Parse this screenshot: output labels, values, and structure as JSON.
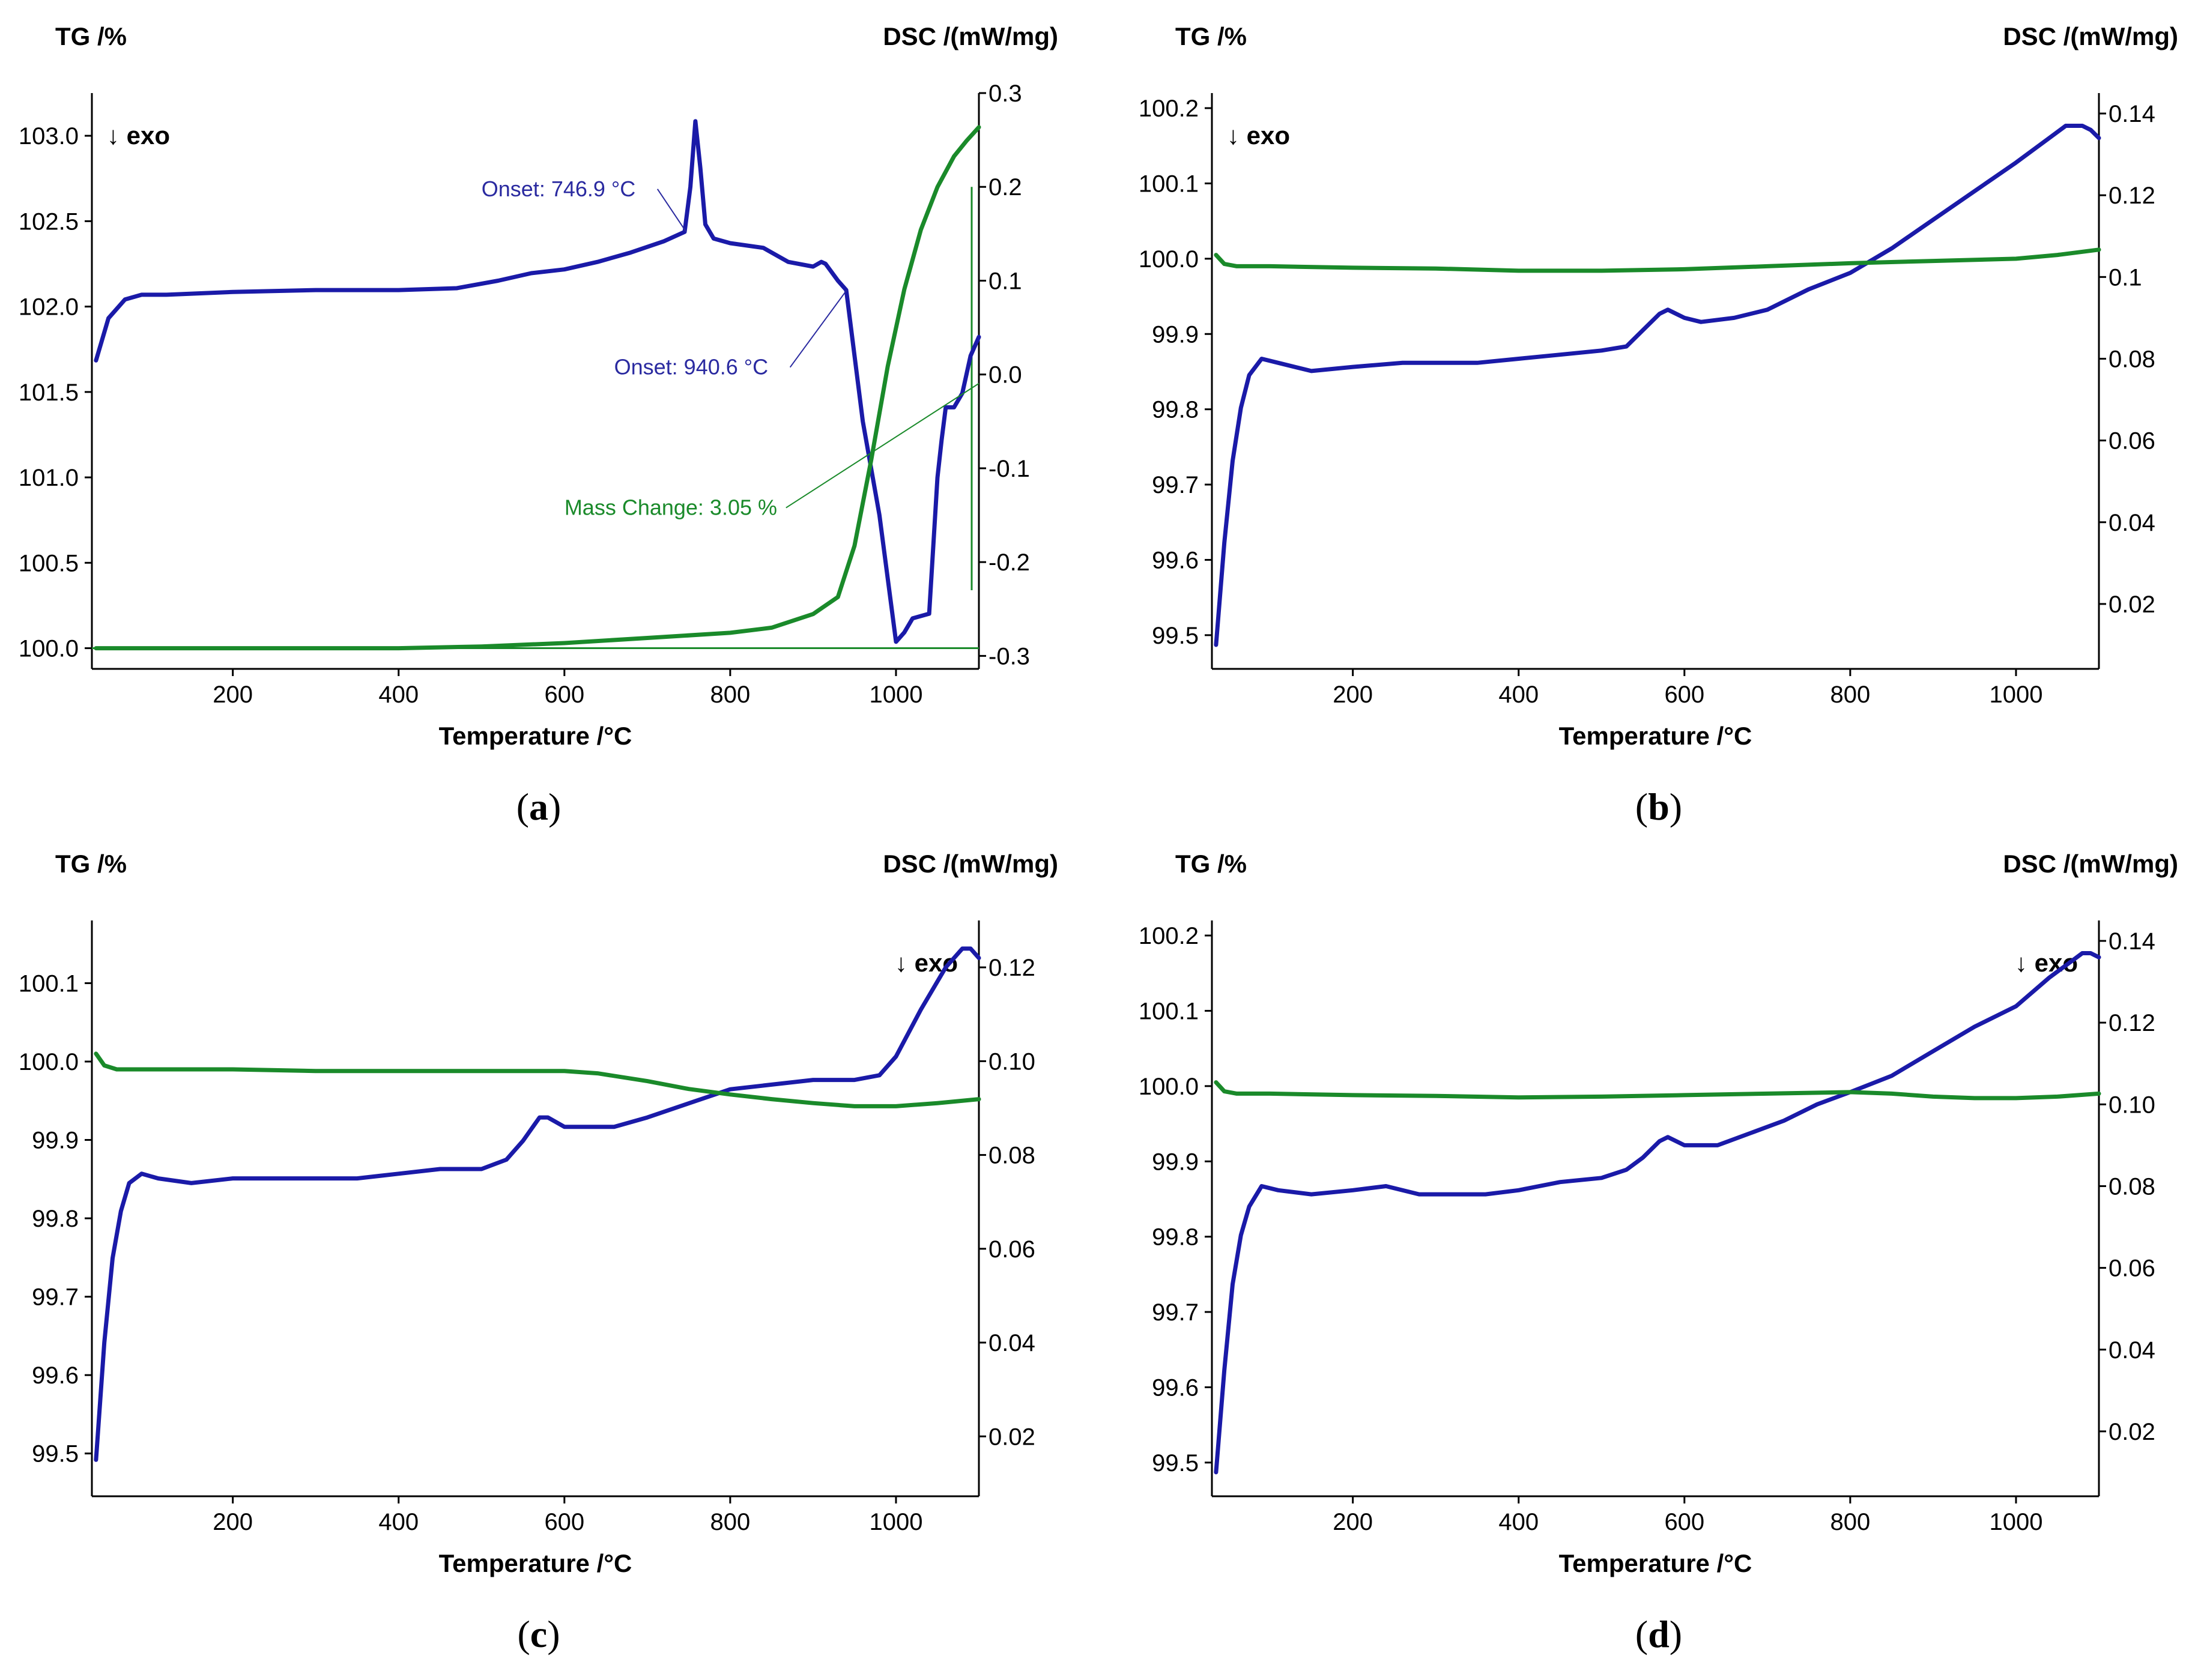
{
  "figure": {
    "colors": {
      "dsc": "#1a1aa8",
      "tg": "#1a8a2a",
      "axis": "#000000",
      "annot_dsc": "#2a2aa0",
      "annot_tg": "#1a8a2a"
    }
  },
  "chart_data": [
    {
      "panel": "(a)",
      "panel_letter": "a",
      "type": "line",
      "y_left_title": "TG /%",
      "y_right_title": "DSC /(mW/mg)",
      "xlabel": "Temperature /°C",
      "exo_label": "↓ exo",
      "exo_pos": "top-left",
      "xlim": [
        30,
        1100
      ],
      "xticks": [
        200,
        400,
        600,
        800,
        1000
      ],
      "ylim_left": [
        99.9,
        103.25
      ],
      "yticks_left": [
        {
          "v": 100.0,
          "t": "100.0"
        },
        {
          "v": 100.5,
          "t": "100.5"
        },
        {
          "v": 101.0,
          "t": "101.0"
        },
        {
          "v": 101.5,
          "t": "101.5"
        },
        {
          "v": 102.0,
          "t": "102.0"
        },
        {
          "v": 102.5,
          "t": "102.5"
        },
        {
          "v": 103.0,
          "t": "103.0"
        }
      ],
      "ylim_right": [
        -0.31,
        0.3
      ],
      "yticks_right": [
        {
          "v": 0.3,
          "t": "0.3"
        },
        {
          "v": 0.2,
          "t": "0.2"
        },
        {
          "v": 0.1,
          "t": "0.1"
        },
        {
          "v": 0.0,
          "t": "0.0"
        },
        {
          "v": -0.1,
          "t": "-0.1"
        },
        {
          "v": -0.2,
          "t": "-0.2"
        },
        {
          "v": -0.3,
          "t": "-0.3"
        }
      ],
      "series": [
        {
          "name": "DSC",
          "axis": "right",
          "color": "#1a1aa8",
          "x": [
            35,
            50,
            70,
            90,
            120,
            200,
            300,
            400,
            470,
            520,
            560,
            600,
            640,
            680,
            720,
            745,
            752,
            758,
            764,
            770,
            780,
            800,
            840,
            870,
            900,
            910,
            915,
            920,
            930,
            940,
            960,
            980,
            1000,
            1010,
            1020,
            1040,
            1050,
            1055,
            1060,
            1070,
            1080,
            1090,
            1100
          ],
          "y": [
            0.015,
            0.06,
            0.08,
            0.085,
            0.085,
            0.088,
            0.09,
            0.09,
            0.092,
            0.1,
            0.108,
            0.112,
            0.12,
            0.13,
            0.142,
            0.152,
            0.2,
            0.27,
            0.22,
            0.16,
            0.145,
            0.14,
            0.135,
            0.12,
            0.115,
            0.12,
            0.118,
            0.112,
            0.1,
            0.09,
            -0.05,
            -0.15,
            -0.285,
            -0.275,
            -0.26,
            -0.255,
            -0.11,
            -0.07,
            -0.035,
            -0.035,
            -0.02,
            0.02,
            0.04
          ]
        },
        {
          "name": "TG",
          "axis": "left",
          "color": "#1a8a2a",
          "x": [
            35,
            200,
            400,
            500,
            600,
            700,
            800,
            850,
            900,
            930,
            950,
            970,
            990,
            1010,
            1030,
            1050,
            1070,
            1085,
            1100
          ],
          "y": [
            100.0,
            100.0,
            100.0,
            100.01,
            100.03,
            100.06,
            100.09,
            100.12,
            100.2,
            100.3,
            100.6,
            101.1,
            101.65,
            102.1,
            102.45,
            102.7,
            102.88,
            102.97,
            103.05
          ]
        }
      ],
      "annotations": [
        {
          "text": "Onset: 746.9 °C",
          "color": "dsc",
          "x": 500,
          "y_right": 0.19,
          "tip_x": 746.9,
          "tip_y_right": 0.152
        },
        {
          "text": "Onset: 940.6 °C",
          "color": "dsc",
          "x": 660,
          "y_right": 0.0,
          "tip_x": 940.6,
          "tip_y_right": 0.09
        },
        {
          "text": "Mass Change: 3.05 %",
          "color": "tg",
          "x": 600,
          "y_left": 100.78,
          "tip_x": 1100,
          "tip_y_left": 101.55
        }
      ]
    },
    {
      "panel": "(b)",
      "panel_letter": "b",
      "type": "line",
      "y_left_title": "TG /%",
      "y_right_title": "DSC /(mW/mg)",
      "xlabel": "Temperature /°C",
      "exo_label": "↓ exo",
      "exo_pos": "top-left",
      "xlim": [
        30,
        1100
      ],
      "xticks": [
        200,
        400,
        600,
        800,
        1000
      ],
      "ylim_left": [
        99.46,
        100.22
      ],
      "yticks_left": [
        {
          "v": 99.5,
          "t": "99.5"
        },
        {
          "v": 99.6,
          "t": "99.6"
        },
        {
          "v": 99.7,
          "t": "99.7"
        },
        {
          "v": 99.8,
          "t": "99.8"
        },
        {
          "v": 99.9,
          "t": "99.9"
        },
        {
          "v": 100.0,
          "t": "100.0"
        },
        {
          "v": 100.1,
          "t": "100.1"
        },
        {
          "v": 100.2,
          "t": "100.2"
        }
      ],
      "ylim_right": [
        0.005,
        0.145
      ],
      "yticks_right": [
        {
          "v": 0.02,
          "t": "0.02"
        },
        {
          "v": 0.04,
          "t": "0.04"
        },
        {
          "v": 0.06,
          "t": "0.06"
        },
        {
          "v": 0.08,
          "t": "0.08"
        },
        {
          "v": 0.1,
          "t": "0.1"
        },
        {
          "v": 0.12,
          "t": "0.12"
        },
        {
          "v": 0.14,
          "t": "0.14"
        }
      ],
      "series": [
        {
          "name": "DSC",
          "axis": "right",
          "color": "#1a1aa8",
          "x": [
            35,
            45,
            55,
            65,
            75,
            90,
            110,
            150,
            200,
            260,
            300,
            350,
            400,
            450,
            500,
            530,
            550,
            570,
            580,
            600,
            620,
            660,
            700,
            750,
            800,
            850,
            900,
            950,
            1000,
            1040,
            1060,
            1080,
            1090,
            1100
          ],
          "y": [
            0.01,
            0.035,
            0.055,
            0.068,
            0.076,
            0.08,
            0.079,
            0.077,
            0.078,
            0.079,
            0.079,
            0.079,
            0.08,
            0.081,
            0.082,
            0.083,
            0.087,
            0.091,
            0.092,
            0.09,
            0.089,
            0.09,
            0.092,
            0.097,
            0.101,
            0.107,
            0.114,
            0.121,
            0.128,
            0.134,
            0.137,
            0.137,
            0.136,
            0.134
          ]
        },
        {
          "name": "TG",
          "axis": "left",
          "color": "#1a8a2a",
          "x": [
            35,
            45,
            60,
            100,
            200,
            300,
            400,
            500,
            600,
            700,
            800,
            900,
            1000,
            1050,
            1100
          ],
          "y": [
            100.005,
            99.993,
            99.99,
            99.99,
            99.988,
            99.987,
            99.984,
            99.984,
            99.986,
            99.99,
            99.994,
            99.997,
            100.0,
            100.005,
            100.012
          ]
        }
      ],
      "annotations": []
    },
    {
      "panel": "(c)",
      "panel_letter": "c",
      "type": "line",
      "y_left_title": "TG /%",
      "y_right_title": "DSC /(mW/mg)",
      "xlabel": "Temperature /°C",
      "exo_label": "↓ exo",
      "exo_pos": "top-right",
      "xlim": [
        30,
        1100
      ],
      "xticks": [
        200,
        400,
        600,
        800,
        1000
      ],
      "ylim_left": [
        99.45,
        100.18
      ],
      "yticks_left": [
        {
          "v": 99.5,
          "t": "99.5"
        },
        {
          "v": 99.6,
          "t": "99.6"
        },
        {
          "v": 99.7,
          "t": "99.7"
        },
        {
          "v": 99.8,
          "t": "99.8"
        },
        {
          "v": 99.9,
          "t": "99.9"
        },
        {
          "v": 100.0,
          "t": "100.0"
        },
        {
          "v": 100.1,
          "t": "100.1"
        }
      ],
      "ylim_right": [
        0.008,
        0.13
      ],
      "yticks_right": [
        {
          "v": 0.02,
          "t": "0.02"
        },
        {
          "v": 0.04,
          "t": "0.04"
        },
        {
          "v": 0.06,
          "t": "0.06"
        },
        {
          "v": 0.08,
          "t": "0.08"
        },
        {
          "v": 0.1,
          "t": "0.10"
        },
        {
          "v": 0.12,
          "t": "0.12"
        }
      ],
      "series": [
        {
          "name": "DSC",
          "axis": "right",
          "color": "#1a1aa8",
          "x": [
            35,
            45,
            55,
            65,
            75,
            90,
            110,
            150,
            200,
            300,
            350,
            400,
            450,
            500,
            530,
            550,
            570,
            580,
            600,
            620,
            660,
            700,
            750,
            800,
            850,
            900,
            950,
            980,
            1000,
            1030,
            1060,
            1080,
            1090,
            1100
          ],
          "y": [
            0.015,
            0.04,
            0.058,
            0.068,
            0.074,
            0.076,
            0.075,
            0.074,
            0.075,
            0.075,
            0.075,
            0.076,
            0.077,
            0.077,
            0.079,
            0.083,
            0.088,
            0.088,
            0.086,
            0.086,
            0.086,
            0.088,
            0.091,
            0.094,
            0.095,
            0.096,
            0.096,
            0.097,
            0.101,
            0.111,
            0.12,
            0.124,
            0.124,
            0.122
          ]
        },
        {
          "name": "TG",
          "axis": "left",
          "color": "#1a8a2a",
          "x": [
            35,
            45,
            60,
            100,
            200,
            300,
            400,
            500,
            600,
            640,
            700,
            750,
            800,
            850,
            900,
            950,
            1000,
            1050,
            1100
          ],
          "y": [
            100.01,
            99.995,
            99.99,
            99.99,
            99.99,
            99.988,
            99.988,
            99.988,
            99.988,
            99.985,
            99.975,
            99.965,
            99.958,
            99.952,
            99.947,
            99.943,
            99.943,
            99.947,
            99.952
          ]
        }
      ],
      "annotations": []
    },
    {
      "panel": "(d)",
      "panel_letter": "d",
      "type": "line",
      "y_left_title": "TG /%",
      "y_right_title": "DSC /(mW/mg)",
      "xlabel": "Temperature /°C",
      "exo_label": "↓ exo",
      "exo_pos": "top-right",
      "xlim": [
        30,
        1100
      ],
      "xticks": [
        200,
        400,
        600,
        800,
        1000
      ],
      "ylim_left": [
        99.46,
        100.22
      ],
      "yticks_left": [
        {
          "v": 99.5,
          "t": "99.5"
        },
        {
          "v": 99.6,
          "t": "99.6"
        },
        {
          "v": 99.7,
          "t": "99.7"
        },
        {
          "v": 99.8,
          "t": "99.8"
        },
        {
          "v": 99.9,
          "t": "99.9"
        },
        {
          "v": 100.0,
          "t": "100.0"
        },
        {
          "v": 100.1,
          "t": "100.1"
        },
        {
          "v": 100.2,
          "t": "100.2"
        }
      ],
      "ylim_right": [
        0.005,
        0.145
      ],
      "yticks_right": [
        {
          "v": 0.02,
          "t": "0.02"
        },
        {
          "v": 0.04,
          "t": "0.04"
        },
        {
          "v": 0.06,
          "t": "0.06"
        },
        {
          "v": 0.08,
          "t": "0.08"
        },
        {
          "v": 0.1,
          "t": "0.10"
        },
        {
          "v": 0.12,
          "t": "0.12"
        },
        {
          "v": 0.14,
          "t": "0.14"
        }
      ],
      "series": [
        {
          "name": "DSC",
          "axis": "right",
          "color": "#1a1aa8",
          "x": [
            35,
            45,
            55,
            65,
            75,
            90,
            110,
            150,
            200,
            240,
            280,
            320,
            360,
            400,
            450,
            500,
            530,
            550,
            570,
            580,
            600,
            640,
            680,
            720,
            760,
            800,
            850,
            900,
            950,
            1000,
            1040,
            1060,
            1080,
            1090,
            1100
          ],
          "y": [
            0.01,
            0.035,
            0.056,
            0.068,
            0.075,
            0.08,
            0.079,
            0.078,
            0.079,
            0.08,
            0.078,
            0.078,
            0.078,
            0.079,
            0.081,
            0.082,
            0.084,
            0.087,
            0.091,
            0.092,
            0.09,
            0.09,
            0.093,
            0.096,
            0.1,
            0.103,
            0.107,
            0.113,
            0.119,
            0.124,
            0.131,
            0.134,
            0.137,
            0.137,
            0.136
          ]
        },
        {
          "name": "TG",
          "axis": "left",
          "color": "#1a8a2a",
          "x": [
            35,
            45,
            60,
            100,
            200,
            300,
            400,
            500,
            600,
            700,
            800,
            850,
            900,
            950,
            1000,
            1050,
            1100
          ],
          "y": [
            100.005,
            99.993,
            99.99,
            99.99,
            99.988,
            99.987,
            99.985,
            99.986,
            99.988,
            99.99,
            99.992,
            99.99,
            99.986,
            99.984,
            99.984,
            99.986,
            99.99
          ]
        }
      ],
      "annotations": []
    }
  ]
}
